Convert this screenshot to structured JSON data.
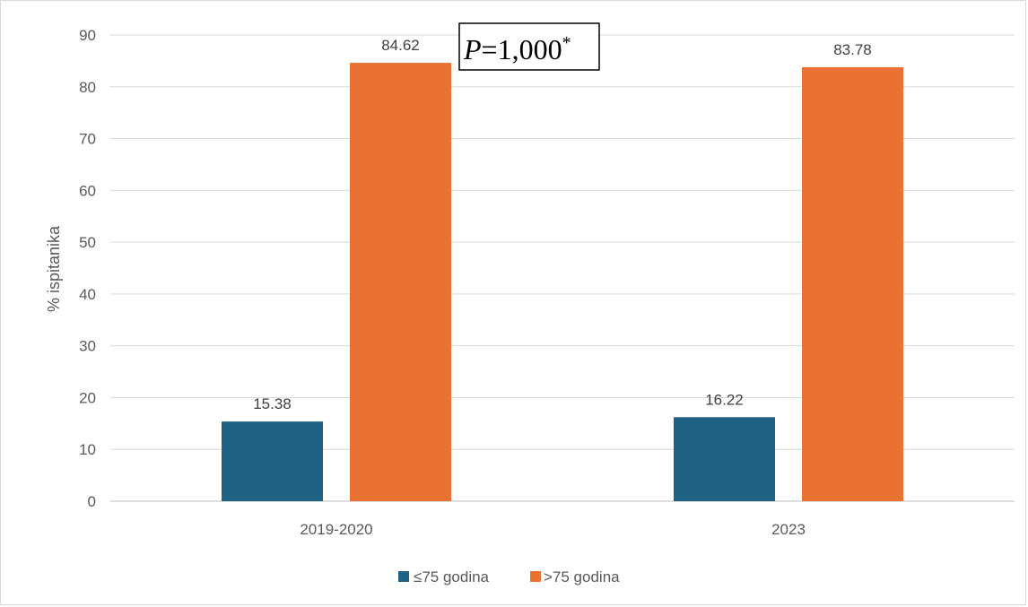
{
  "chart_data": {
    "type": "bar",
    "categories": [
      "2019-2020",
      "2023"
    ],
    "series": [
      {
        "name": "≤75 godina",
        "values": [
          15.38,
          16.22
        ],
        "color": "#1f6284"
      },
      {
        "name": ">75 godina",
        "values": [
          84.62,
          83.78
        ],
        "color": "#e97132"
      }
    ],
    "data_labels": [
      [
        "15.38",
        "16.22"
      ],
      [
        "84.62",
        "83.78"
      ]
    ],
    "xlabel": "",
    "ylabel": "% ispitanika",
    "ylim": [
      0,
      90
    ],
    "yticks": [
      0,
      10,
      20,
      30,
      40,
      50,
      60,
      70,
      80,
      90
    ],
    "grid": true,
    "legend_position": "bottom",
    "annotation": {
      "italic": "P",
      "text": "=1,000",
      "superscript": "*"
    }
  },
  "colors": {
    "gridline": "#d9d9d9",
    "axis_line": "#bfbfbf",
    "border": "#d9d9d9"
  }
}
